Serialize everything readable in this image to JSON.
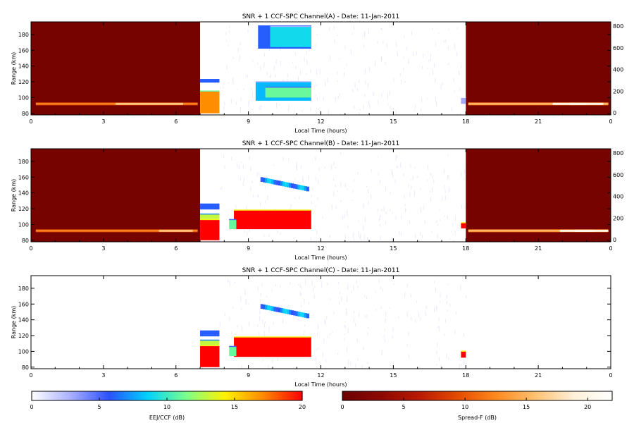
{
  "chart_data": [
    {
      "type": "heatmap",
      "title": "SNR + 1 CCF-SPC Channel(A) - Date: 11-Jan-2011",
      "xlabel": "Local Time (hours)",
      "ylabel": "Range (km)",
      "xlim": [
        0,
        24
      ],
      "ylim": [
        78,
        196
      ],
      "xticks": [
        "0",
        "3",
        "6",
        "9",
        "12",
        "15",
        "18",
        "21",
        "0"
      ],
      "yticks": [
        80,
        100,
        120,
        140,
        160,
        180
      ],
      "right_yticks": [
        0,
        200,
        400,
        600,
        800
      ],
      "night_intervals_hours": [
        [
          0,
          7.0
        ],
        [
          18.0,
          24
        ]
      ],
      "night_background_db": 1,
      "spread_f_layers": [
        {
          "range_km": 92,
          "peak_db": 16,
          "start_h": 0.2,
          "end_h": 6.9,
          "peaks_h": [
            4.2,
            5.6
          ]
        },
        {
          "range_km": 92,
          "peak_db": 20,
          "start_h": 18.1,
          "end_h": 23.9,
          "peaks_h": [
            22.3,
            23.0
          ]
        }
      ],
      "eej_echoes": [
        {
          "start_h": 7.0,
          "end_h": 7.8,
          "bottom_km": 80,
          "top_km": 108,
          "db": 17
        },
        {
          "start_h": 7.0,
          "end_h": 7.8,
          "bottom_km": 119,
          "top_km": 124,
          "db": 6
        },
        {
          "start_h": 9.3,
          "end_h": 11.6,
          "bottom_km": 96,
          "top_km": 120,
          "db": 8
        },
        {
          "start_h": 9.7,
          "end_h": 11.6,
          "bottom_km": 100,
          "top_km": 113,
          "db": 11
        },
        {
          "start_h": 9.4,
          "end_h": 11.6,
          "bottom_km": 162,
          "top_km": 192,
          "db": 6
        },
        {
          "start_h": 9.9,
          "end_h": 11.6,
          "bottom_km": 164,
          "top_km": 190,
          "db": 9
        },
        {
          "start_h": 17.8,
          "end_h": 18.0,
          "bottom_km": 92,
          "top_km": 100,
          "db": 3
        }
      ]
    },
    {
      "type": "heatmap",
      "title": "SNR + 1 CCF-SPC Channel(B) - Date: 11-Jan-2011",
      "xlabel": "Local Time (hours)",
      "ylabel": "Range (km)",
      "xlim": [
        0,
        24
      ],
      "ylim": [
        78,
        196
      ],
      "xticks": [
        "0",
        "3",
        "6",
        "9",
        "12",
        "15",
        "18",
        "21",
        "0"
      ],
      "yticks": [
        80,
        100,
        120,
        140,
        160,
        180
      ],
      "right_yticks": [
        0,
        200,
        400,
        600,
        800
      ],
      "night_intervals_hours": [
        [
          0,
          7.0
        ],
        [
          18.0,
          24
        ]
      ],
      "night_background_db": 1,
      "spread_f_layers": [
        {
          "range_km": 92,
          "peak_db": 16,
          "start_h": 0.2,
          "end_h": 6.9,
          "peaks_h": [
            6.0
          ]
        },
        {
          "range_km": 92,
          "peak_db": 20,
          "start_h": 18.1,
          "end_h": 23.9,
          "peaks_h": [
            22.6,
            23.2
          ]
        }
      ],
      "eej_echoes": [
        {
          "start_h": 7.0,
          "end_h": 7.8,
          "bottom_km": 80,
          "top_km": 106,
          "db": 20
        },
        {
          "start_h": 7.0,
          "end_h": 7.8,
          "bottom_km": 107,
          "top_km": 113,
          "db": 13
        },
        {
          "start_h": 7.0,
          "end_h": 7.8,
          "bottom_km": 119,
          "top_km": 127,
          "db": 6
        },
        {
          "start_h": 8.4,
          "end_h": 11.6,
          "bottom_km": 94,
          "top_km": 118,
          "db": 20
        },
        {
          "start_h": 8.2,
          "end_h": 8.5,
          "bottom_km": 94,
          "top_km": 106,
          "db": 11
        },
        {
          "start_h": 17.8,
          "end_h": 18.0,
          "bottom_km": 95,
          "top_km": 102,
          "db": 20
        }
      ],
      "upper_echo": {
        "start_h": 9.5,
        "end_h": 11.4,
        "start_km": 157,
        "end_km": 145,
        "db": 9
      }
    },
    {
      "type": "heatmap",
      "title": "SNR + 1 CCF-SPC Channel(C) - Date: 11-Jan-2011",
      "xlabel": "Local Time (hours)",
      "ylabel": "Range (km)",
      "xlim": [
        0,
        24
      ],
      "ylim": [
        78,
        196
      ],
      "xticks": [
        "0",
        "3",
        "6",
        "9",
        "12",
        "15",
        "18",
        "21",
        "0"
      ],
      "yticks": [
        80,
        100,
        120,
        140,
        160,
        180
      ],
      "right_yticks": [],
      "night_intervals_hours": [],
      "spread_f_layers": [],
      "eej_echoes": [
        {
          "start_h": 7.0,
          "end_h": 7.8,
          "bottom_km": 80,
          "top_km": 107,
          "db": 20
        },
        {
          "start_h": 7.0,
          "end_h": 7.8,
          "bottom_km": 108,
          "top_km": 114,
          "db": 13
        },
        {
          "start_h": 7.0,
          "end_h": 7.8,
          "bottom_km": 119,
          "top_km": 127,
          "db": 6
        },
        {
          "start_h": 8.4,
          "end_h": 11.6,
          "bottom_km": 93,
          "top_km": 118,
          "db": 20
        },
        {
          "start_h": 8.2,
          "end_h": 8.5,
          "bottom_km": 94,
          "top_km": 106,
          "db": 11
        },
        {
          "start_h": 17.8,
          "end_h": 18.0,
          "bottom_km": 92,
          "top_km": 100,
          "db": 20
        }
      ],
      "upper_echo": {
        "start_h": 9.5,
        "end_h": 11.4,
        "start_km": 157,
        "end_km": 145,
        "db": 9
      }
    },
    {
      "type": "colorbar",
      "xlabel": "EEJ/CCF (dB)",
      "range": [
        0,
        20
      ],
      "ticks": [
        0,
        5,
        10,
        15,
        20
      ],
      "colors": [
        "#ffffff",
        "#aab0ff",
        "#2a50ff",
        "#00d2ff",
        "#7cff8a",
        "#fff200",
        "#ff8800",
        "#ff0000"
      ]
    },
    {
      "type": "colorbar",
      "xlabel": "Spread-F (dB)",
      "range": [
        0,
        22
      ],
      "ticks": [
        0,
        5,
        10,
        15,
        20
      ],
      "colors": [
        "#6b0000",
        "#8c0a00",
        "#b81a00",
        "#e44c00",
        "#ff8a20",
        "#ffc070",
        "#fff0d8",
        "#ffffff"
      ]
    }
  ]
}
